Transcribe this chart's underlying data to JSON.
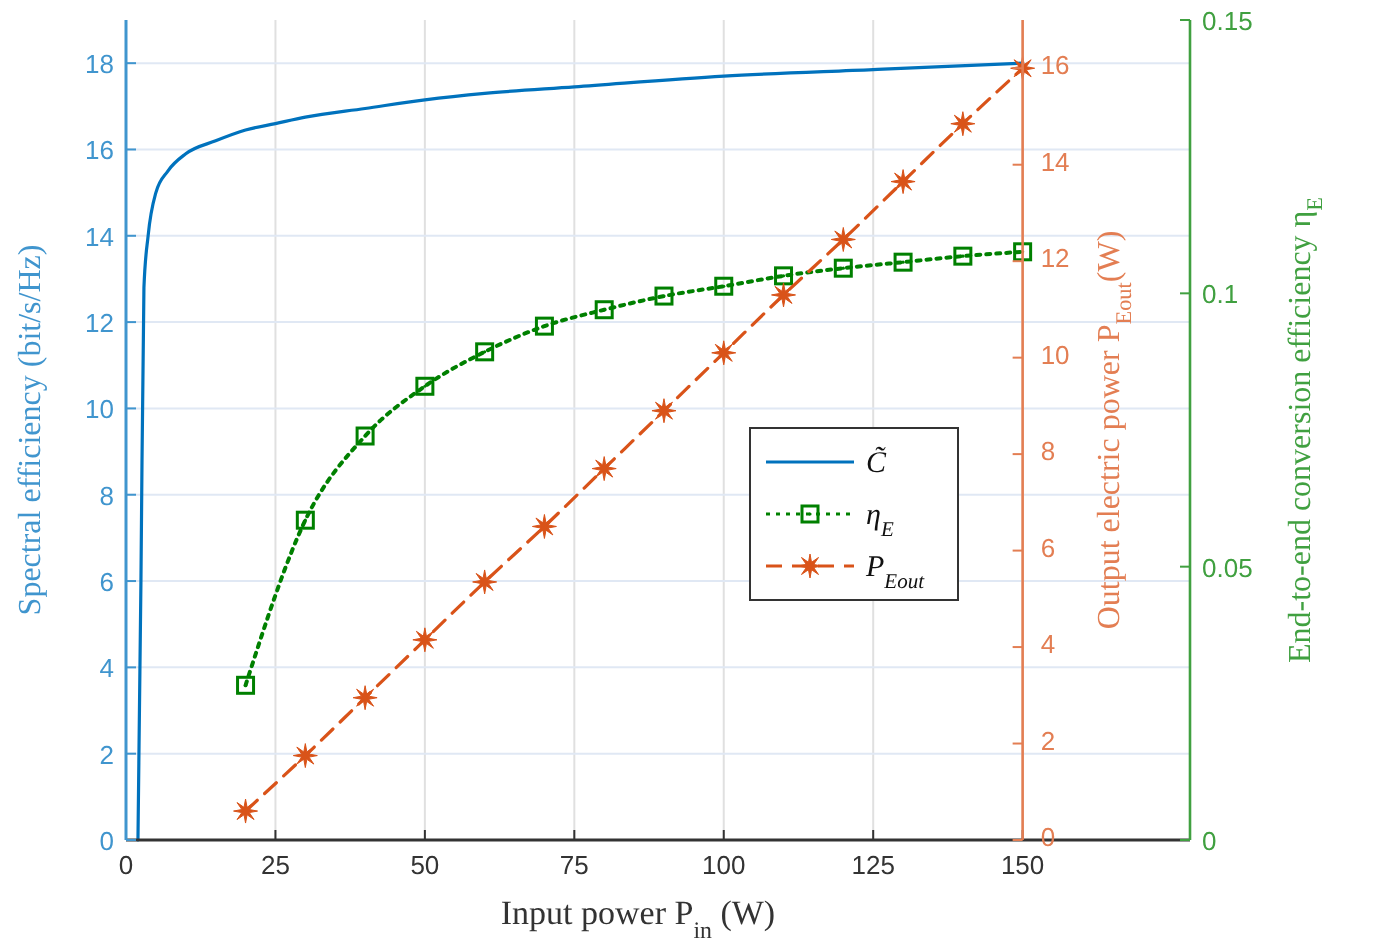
{
  "chart_data": {
    "type": "line",
    "xlabel": "Input power P$_{in}$ (W)",
    "ylabel": "Spectral efficiency (bit/s/Hz)",
    "y2label": "Output electric power P$_{Eout}$(W)",
    "y3label": "End-to-end conversion efficiency η$_{E}$",
    "xlim": [
      0,
      178
    ],
    "xticks": [
      0,
      25,
      50,
      75,
      100,
      125,
      150
    ],
    "ylim": [
      0,
      19
    ],
    "yticks": [
      0,
      2,
      4,
      6,
      8,
      10,
      12,
      14,
      16,
      18
    ],
    "y2lim": [
      0,
      17
    ],
    "y2ticks": [
      0,
      2,
      4,
      6,
      8,
      10,
      12,
      14,
      16
    ],
    "y3lim": [
      0,
      0.15
    ],
    "y3ticks": [
      0,
      0.05,
      0.1,
      0.15
    ],
    "grid": true,
    "legend": "right",
    "series": [
      {
        "name": "C̃",
        "color": "#0072bd",
        "axis": "y",
        "line_style": "solid",
        "marker": "none",
        "x": [
          2,
          2.5,
          3,
          3.7,
          5,
          7,
          10,
          15,
          20,
          25,
          30,
          40,
          50,
          60,
          75,
          100,
          125,
          150
        ],
        "values": [
          0,
          6,
          12.8,
          14,
          15,
          15.5,
          15.9,
          16.2,
          16.45,
          16.6,
          16.75,
          16.95,
          17.15,
          17.3,
          17.45,
          17.7,
          17.85,
          18
        ]
      },
      {
        "name": "η$_{E}$",
        "color": "#008000",
        "axis": "y3",
        "line_style": "dotted",
        "marker": "square",
        "x": [
          20,
          30,
          40,
          50,
          60,
          70,
          80,
          90,
          100,
          110,
          120,
          130,
          140,
          150
        ],
        "values": [
          0.0283,
          0.0585,
          0.0739,
          0.083,
          0.0893,
          0.094,
          0.097,
          0.0995,
          0.1013,
          0.1032,
          0.1046,
          0.1057,
          0.1068,
          0.1076
        ]
      },
      {
        "name": "P$_{Eout}$",
        "color": "#d95319",
        "axis": "y2",
        "line_style": "dashed",
        "marker": "star",
        "x": [
          20,
          30,
          40,
          50,
          60,
          70,
          80,
          90,
          100,
          110,
          120,
          130,
          140,
          150
        ],
        "values": [
          0.6,
          1.75,
          2.95,
          4.15,
          5.35,
          6.5,
          7.7,
          8.9,
          10.1,
          11.3,
          12.45,
          13.65,
          14.85,
          16
        ]
      }
    ]
  }
}
